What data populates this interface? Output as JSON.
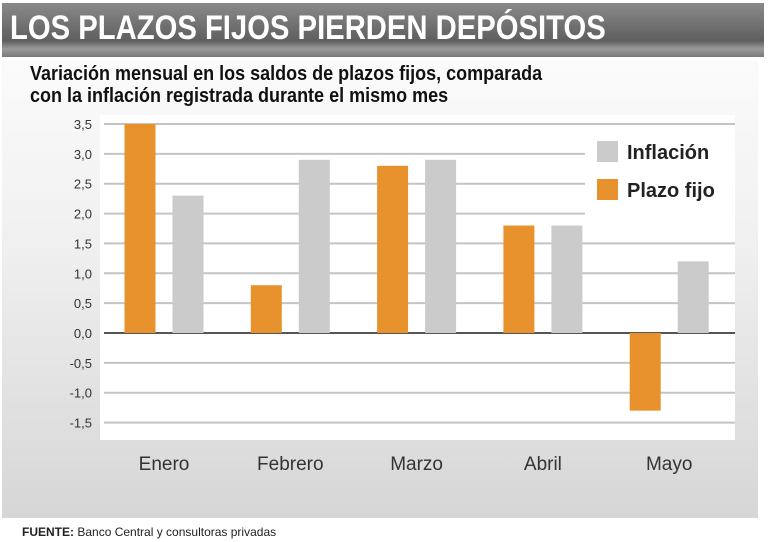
{
  "header": {
    "title": "LOS PLAZOS FIJOS PIERDEN DEPÓSITOS"
  },
  "subtitle": [
    "Variación mensual en los saldos de plazos fijos, comparada",
    "con la inflación registrada durante el mismo mes"
  ],
  "footer": {
    "label": "FUENTE:",
    "text": "Banco Central y consultoras privadas"
  },
  "chart_data": {
    "type": "bar",
    "title": "Variación mensual en los saldos de plazos fijos, comparada con la inflación registrada durante el mismo mes",
    "categories": [
      "Enero",
      "Febrero",
      "Marzo",
      "Abril",
      "Mayo"
    ],
    "series": [
      {
        "name": "Plazo fijo",
        "color": "#e8922e",
        "values": [
          3.5,
          0.8,
          2.8,
          1.8,
          -1.3
        ]
      },
      {
        "name": "Inflación",
        "color": "#cbcbcb",
        "values": [
          2.3,
          2.9,
          2.9,
          1.8,
          1.2
        ]
      }
    ],
    "yticks": [
      "3,5",
      "3,0",
      "2,5",
      "2,0",
      "1,5",
      "1,0",
      "0,5",
      "0,0",
      "-0,5",
      "-1,0",
      "-1,5"
    ],
    "ylim": [
      -1.5,
      3.5
    ],
    "grid": true,
    "legend": {
      "position": "top-right",
      "order": [
        "Inflación",
        "Plazo fijo"
      ]
    }
  }
}
